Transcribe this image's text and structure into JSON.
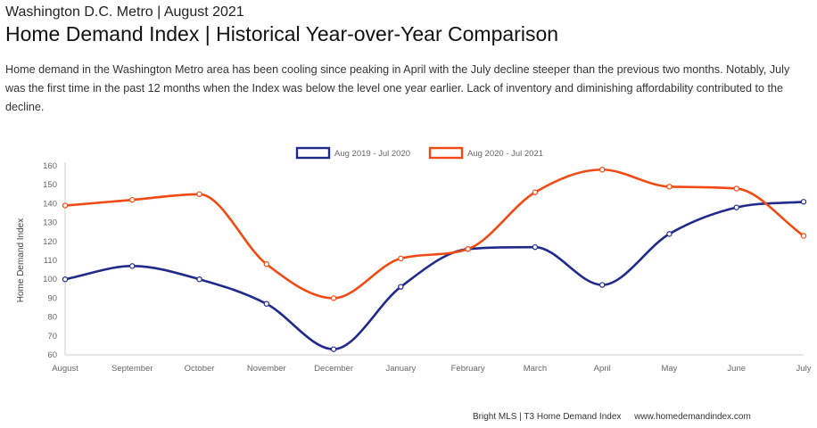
{
  "header": {
    "kicker": "Washington D.C. Metro | August 2021",
    "title": "Home Demand Index | Historical Year-over-Year Comparison",
    "description": "Home demand in the Washington Metro area has been cooling since peaking in April with the July decline steeper than the previous two months. Notably, July was the first time in the past 12 months when the Index was below the level one year earlier. Lack of inventory and diminishing affordability contributed to the decline."
  },
  "footer": {
    "source": "Bright MLS | T3 Home Demand Index",
    "site": "www.homedemandindex.com"
  },
  "colors": {
    "series_2019": "#1f2a8a",
    "series_2020": "#f04a12"
  },
  "chart_data": {
    "type": "line",
    "title": "",
    "xlabel": "",
    "ylabel": "Home Demand Index",
    "ylim": [
      60,
      160
    ],
    "yticks": [
      60,
      70,
      80,
      90,
      100,
      110,
      120,
      130,
      140,
      150,
      160
    ],
    "categories": [
      "August",
      "September",
      "October",
      "November",
      "December",
      "January",
      "February",
      "March",
      "April",
      "May",
      "June",
      "July"
    ],
    "grid": false,
    "legend_position": "top-center",
    "series": [
      {
        "name": "Aug 2019 - Jul 2020",
        "color": "#1f2a8a",
        "values": [
          100,
          107,
          100,
          87,
          63,
          96,
          116,
          117,
          97,
          124,
          138,
          141
        ]
      },
      {
        "name": "Aug 2020 - Jul 2021",
        "color": "#f04a12",
        "values": [
          139,
          142,
          145,
          108,
          90,
          111,
          116,
          146,
          158,
          149,
          148,
          123
        ]
      }
    ]
  }
}
